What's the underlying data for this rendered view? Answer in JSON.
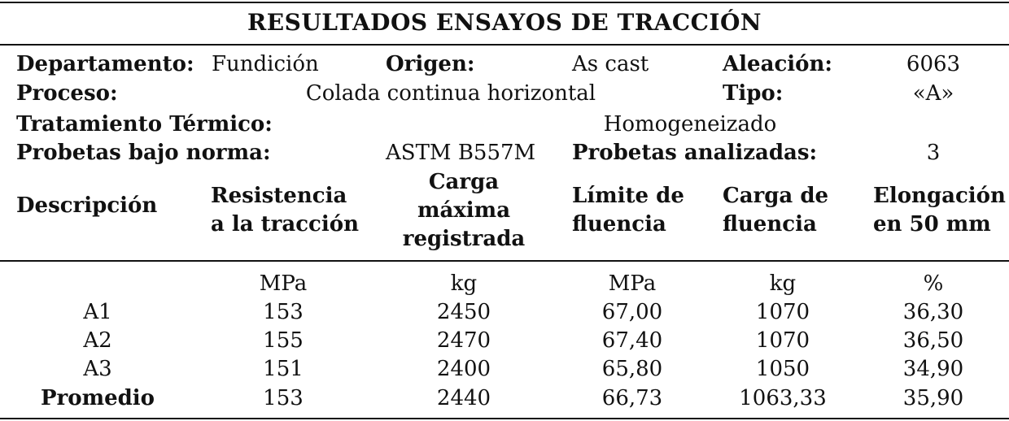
{
  "title": "RESULTADOS ENSAYOS DE TRACCIÓN",
  "info": {
    "departamento_label": "Departamento:",
    "departamento_value": "Fundición",
    "origen_label": "Origen:",
    "origen_value": "As cast",
    "aleacion_label": "Aleación:",
    "aleacion_value": "6063",
    "proceso_label": "Proceso:",
    "proceso_value": "Colada continua horizontal",
    "tipo_label": "Tipo:",
    "tipo_value": "«A»",
    "tratamiento_label": "Tratamiento Térmico:",
    "tratamiento_value": "Homogeneizado",
    "norma_label": "Probetas bajo norma:",
    "norma_value": "ASTM B557M",
    "analizadas_label": "Probetas analizadas:",
    "analizadas_value": "3"
  },
  "table": {
    "headers": [
      [
        "Descripción"
      ],
      [
        "Resistencia",
        "a la tracción"
      ],
      [
        "Carga",
        "máxima",
        "registrada"
      ],
      [
        "Límite de",
        "fluencia"
      ],
      [
        "Carga de",
        "fluencia"
      ],
      [
        "Elongación",
        "en 50 mm"
      ]
    ],
    "units": [
      "",
      "MPa",
      "kg",
      "MPa",
      "kg",
      "%"
    ],
    "rows": [
      [
        "A1",
        "153",
        "2450",
        "67,00",
        "1070",
        "36,30"
      ],
      [
        "A2",
        "155",
        "2470",
        "67,40",
        "1070",
        "36,50"
      ],
      [
        "A3",
        "151",
        "2400",
        "65,80",
        "1050",
        "34,90"
      ],
      [
        "Promedio",
        "153",
        "2440",
        "66,73",
        "1063,33",
        "35,90"
      ]
    ]
  }
}
